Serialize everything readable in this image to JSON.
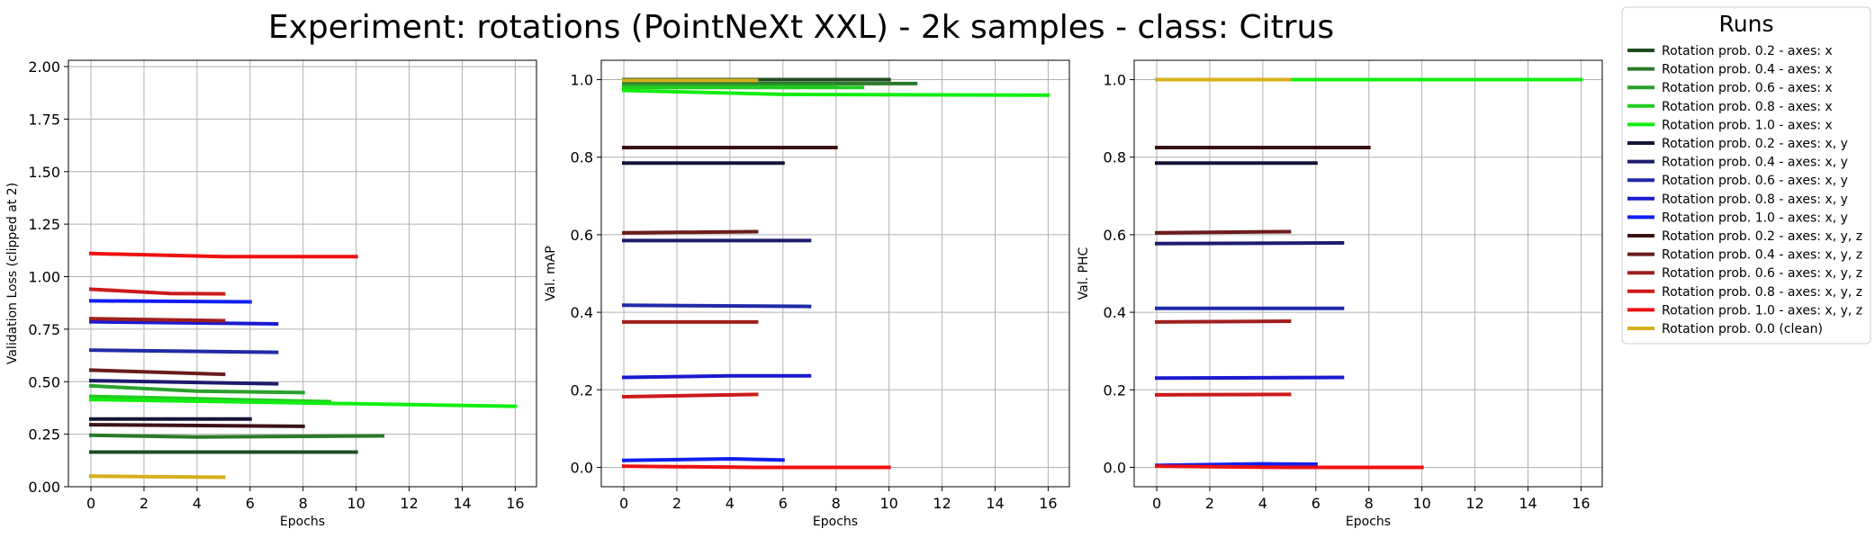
{
  "figure": {
    "title": "Experiment: rotations (PointNeXt XXL) - 2k samples - class: Citrus",
    "legend_title": "Runs"
  },
  "runs": [
    {
      "name": "Rotation prob. 0.2 - axes: x",
      "color": "#1f4d1f"
    },
    {
      "name": "Rotation prob. 0.4 - axes: x",
      "color": "#2a7a2a"
    },
    {
      "name": "Rotation prob. 0.6 - axes: x",
      "color": "#2aa02a"
    },
    {
      "name": "Rotation prob. 0.8 - axes: x",
      "color": "#22cc22"
    },
    {
      "name": "Rotation prob. 1.0 - axes: x",
      "color": "#11ee11"
    },
    {
      "name": "Rotation prob. 0.2 - axes: x, y",
      "color": "#141438"
    },
    {
      "name": "Rotation prob. 0.4 - axes: x, y",
      "color": "#1c1c6e"
    },
    {
      "name": "Rotation prob. 0.6 - axes: x, y",
      "color": "#1f2aa6"
    },
    {
      "name": "Rotation prob. 0.8 - axes: x, y",
      "color": "#1a1ad0"
    },
    {
      "name": "Rotation prob. 1.0 - axes: x, y",
      "color": "#0f1ff0"
    },
    {
      "name": "Rotation prob. 0.2 - axes: x, y, z",
      "color": "#3b1212"
    },
    {
      "name": "Rotation prob. 0.4 - axes: x, y, z",
      "color": "#6b1c1c"
    },
    {
      "name": "Rotation prob. 0.6 - axes: x, y, z",
      "color": "#a01e1e"
    },
    {
      "name": "Rotation prob. 0.8 - axes: x, y, z",
      "color": "#cc1a1a"
    },
    {
      "name": "Rotation prob. 1.0 - axes: x, y, z",
      "color": "#ee1111"
    },
    {
      "name": "Rotation prob. 0.0 (clean)",
      "color": "#d4af1a"
    }
  ],
  "chart_data": [
    {
      "type": "line",
      "xlabel": "Epochs",
      "ylabel": "Validation Loss (clipped at 2)",
      "xlim": [
        -0.85,
        16.8
      ],
      "ylim": [
        0.0,
        2.03
      ],
      "xticks": [
        0,
        2,
        4,
        6,
        8,
        10,
        12,
        14,
        16
      ],
      "xtick_labels": [
        "0",
        "2",
        "4",
        "6",
        "8",
        "10",
        "12",
        "14",
        "16"
      ],
      "yticks": [
        0.0,
        0.25,
        0.5,
        0.75,
        1.0,
        1.25,
        1.5,
        1.75,
        2.0
      ],
      "ytick_labels": [
        "0.00",
        "0.25",
        "0.50",
        "0.75",
        "1.00",
        "1.25",
        "1.50",
        "1.75",
        "2.00"
      ],
      "grid": true,
      "series": [
        {
          "run": 0,
          "points": [
            [
              0,
              0.165
            ],
            [
              10,
              0.165
            ]
          ]
        },
        {
          "run": 1,
          "points": [
            [
              0,
              0.245
            ],
            [
              4,
              0.237
            ],
            [
              11,
              0.242
            ]
          ]
        },
        {
          "run": 2,
          "points": [
            [
              0,
              0.48
            ],
            [
              4,
              0.455
            ],
            [
              8,
              0.448
            ]
          ]
        },
        {
          "run": 3,
          "points": [
            [
              0,
              0.43
            ],
            [
              9,
              0.405
            ]
          ]
        },
        {
          "run": 4,
          "points": [
            [
              0,
              0.415
            ],
            [
              16,
              0.383
            ]
          ]
        },
        {
          "run": 5,
          "points": [
            [
              0,
              0.322
            ],
            [
              6,
              0.322
            ]
          ]
        },
        {
          "run": 6,
          "points": [
            [
              0,
              0.505
            ],
            [
              7,
              0.49
            ]
          ]
        },
        {
          "run": 7,
          "points": [
            [
              0,
              0.65
            ],
            [
              7,
              0.64
            ]
          ]
        },
        {
          "run": 8,
          "points": [
            [
              0,
              0.785
            ],
            [
              7,
              0.775
            ]
          ]
        },
        {
          "run": 9,
          "points": [
            [
              0,
              0.885
            ],
            [
              6,
              0.88
            ]
          ]
        },
        {
          "run": 10,
          "points": [
            [
              0,
              0.295
            ],
            [
              8,
              0.288
            ]
          ]
        },
        {
          "run": 11,
          "points": [
            [
              0,
              0.555
            ],
            [
              5,
              0.535
            ]
          ]
        },
        {
          "run": 12,
          "points": [
            [
              0,
              0.8
            ],
            [
              5,
              0.79
            ]
          ]
        },
        {
          "run": 13,
          "points": [
            [
              0,
              0.94
            ],
            [
              3,
              0.92
            ],
            [
              5,
              0.918
            ]
          ]
        },
        {
          "run": 14,
          "points": [
            [
              0,
              1.11
            ],
            [
              5,
              1.095
            ],
            [
              10,
              1.095
            ]
          ]
        },
        {
          "run": 15,
          "points": [
            [
              0,
              0.05
            ],
            [
              5,
              0.045
            ]
          ]
        }
      ]
    },
    {
      "type": "line",
      "xlabel": "Epochs",
      "ylabel": "Val. mAP",
      "xlim": [
        -0.85,
        16.8
      ],
      "ylim": [
        -0.05,
        1.05
      ],
      "xticks": [
        0,
        2,
        4,
        6,
        8,
        10,
        12,
        14,
        16
      ],
      "xtick_labels": [
        "0",
        "2",
        "4",
        "6",
        "8",
        "10",
        "12",
        "14",
        "16"
      ],
      "yticks": [
        0.0,
        0.2,
        0.4,
        0.6,
        0.8,
        1.0
      ],
      "ytick_labels": [
        "0.0",
        "0.2",
        "0.4",
        "0.6",
        "0.8",
        "1.0"
      ],
      "grid": true,
      "series": [
        {
          "run": 0,
          "points": [
            [
              0,
              1.0
            ],
            [
              10,
              1.0
            ]
          ]
        },
        {
          "run": 1,
          "points": [
            [
              0,
              0.99
            ],
            [
              11,
              0.99
            ]
          ]
        },
        {
          "run": 2,
          "points": [
            [
              0,
              0.985
            ],
            [
              8,
              0.985
            ]
          ]
        },
        {
          "run": 3,
          "points": [
            [
              0,
              0.98
            ],
            [
              9,
              0.98
            ]
          ]
        },
        {
          "run": 4,
          "points": [
            [
              0,
              0.972
            ],
            [
              6,
              0.962
            ],
            [
              16,
              0.96
            ]
          ]
        },
        {
          "run": 5,
          "points": [
            [
              0,
              0.785
            ],
            [
              6,
              0.785
            ]
          ]
        },
        {
          "run": 6,
          "points": [
            [
              0,
              0.585
            ],
            [
              7,
              0.585
            ]
          ]
        },
        {
          "run": 7,
          "points": [
            [
              0,
              0.418
            ],
            [
              7,
              0.415
            ]
          ]
        },
        {
          "run": 8,
          "points": [
            [
              0,
              0.232
            ],
            [
              4,
              0.236
            ],
            [
              7,
              0.236
            ]
          ]
        },
        {
          "run": 9,
          "points": [
            [
              0,
              0.018
            ],
            [
              4,
              0.022
            ],
            [
              6,
              0.019
            ]
          ]
        },
        {
          "run": 10,
          "points": [
            [
              0,
              0.825
            ],
            [
              8,
              0.825
            ]
          ]
        },
        {
          "run": 11,
          "points": [
            [
              0,
              0.605
            ],
            [
              5,
              0.608
            ]
          ]
        },
        {
          "run": 12,
          "points": [
            [
              0,
              0.375
            ],
            [
              5,
              0.375
            ]
          ]
        },
        {
          "run": 13,
          "points": [
            [
              0,
              0.182
            ],
            [
              5,
              0.188
            ]
          ]
        },
        {
          "run": 14,
          "points": [
            [
              0,
              0.003
            ],
            [
              5,
              0.0
            ],
            [
              10,
              0.0
            ]
          ]
        },
        {
          "run": 15,
          "points": [
            [
              0,
              0.998
            ],
            [
              5,
              0.998
            ]
          ]
        }
      ]
    },
    {
      "type": "line",
      "xlabel": "Epochs",
      "ylabel": "Val. PHC",
      "xlim": [
        -0.85,
        16.8
      ],
      "ylim": [
        -0.05,
        1.05
      ],
      "xticks": [
        0,
        2,
        4,
        6,
        8,
        10,
        12,
        14,
        16
      ],
      "xtick_labels": [
        "0",
        "2",
        "4",
        "6",
        "8",
        "10",
        "12",
        "14",
        "16"
      ],
      "yticks": [
        0.0,
        0.2,
        0.4,
        0.6,
        0.8,
        1.0
      ],
      "ytick_labels": [
        "0.0",
        "0.2",
        "0.4",
        "0.6",
        "0.8",
        "1.0"
      ],
      "grid": true,
      "series": [
        {
          "run": 0,
          "points": [
            [
              0,
              1.0
            ],
            [
              10,
              1.0
            ]
          ]
        },
        {
          "run": 1,
          "points": [
            [
              0,
              1.0
            ],
            [
              11,
              1.0
            ]
          ]
        },
        {
          "run": 2,
          "points": [
            [
              0,
              1.0
            ],
            [
              8,
              1.0
            ]
          ]
        },
        {
          "run": 3,
          "points": [
            [
              0,
              1.0
            ],
            [
              9,
              1.0
            ]
          ]
        },
        {
          "run": 4,
          "points": [
            [
              0,
              1.0
            ],
            [
              16,
              1.0
            ]
          ]
        },
        {
          "run": 5,
          "points": [
            [
              0,
              0.785
            ],
            [
              6,
              0.785
            ]
          ]
        },
        {
          "run": 6,
          "points": [
            [
              0,
              0.577
            ],
            [
              7,
              0.579
            ]
          ]
        },
        {
          "run": 7,
          "points": [
            [
              0,
              0.41
            ],
            [
              7,
              0.41
            ]
          ]
        },
        {
          "run": 8,
          "points": [
            [
              0,
              0.23
            ],
            [
              7,
              0.232
            ]
          ]
        },
        {
          "run": 9,
          "points": [
            [
              0,
              0.005
            ],
            [
              4,
              0.009
            ],
            [
              6,
              0.008
            ]
          ]
        },
        {
          "run": 10,
          "points": [
            [
              0,
              0.825
            ],
            [
              8,
              0.825
            ]
          ]
        },
        {
          "run": 11,
          "points": [
            [
              0,
              0.605
            ],
            [
              5,
              0.608
            ]
          ]
        },
        {
          "run": 12,
          "points": [
            [
              0,
              0.375
            ],
            [
              5,
              0.377
            ]
          ]
        },
        {
          "run": 13,
          "points": [
            [
              0,
              0.187
            ],
            [
              5,
              0.188
            ]
          ]
        },
        {
          "run": 14,
          "points": [
            [
              0,
              0.003
            ],
            [
              5,
              0.0
            ],
            [
              10,
              0.0
            ]
          ]
        },
        {
          "run": 15,
          "points": [
            [
              0,
              1.0
            ],
            [
              5,
              1.0
            ]
          ]
        }
      ]
    }
  ]
}
